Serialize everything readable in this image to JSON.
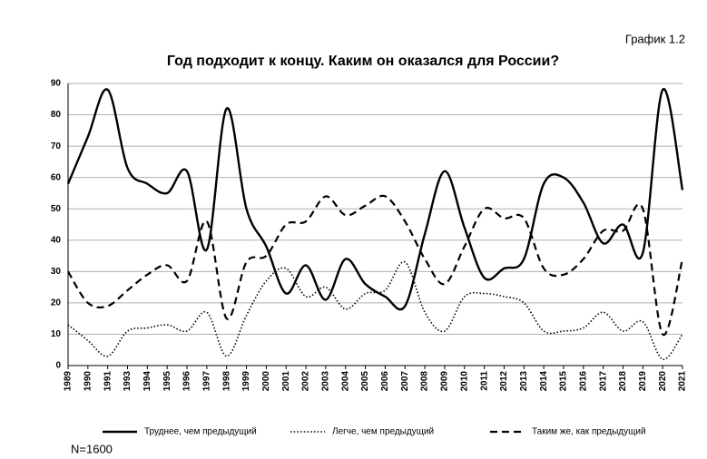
{
  "chart_data": {
    "type": "line",
    "title": "Год подходит к концу. Каким он оказался для России?",
    "label": "График 1.2",
    "note": "N=1600",
    "categories": [
      "1989",
      "1990",
      "1991",
      "1993",
      "1994",
      "1995",
      "1996",
      "1997",
      "1998",
      "1999",
      "2000",
      "2001",
      "2002",
      "2003",
      "2004",
      "2005",
      "2006",
      "2007",
      "2008",
      "2009",
      "2010",
      "2011",
      "2012",
      "2013",
      "2014",
      "2015",
      "2016",
      "2017",
      "2018",
      "2019",
      "2020",
      "2021"
    ],
    "series": [
      {
        "name": "Труднее, чем предыдущий",
        "color": "#000000",
        "style": "solid",
        "values": [
          58,
          73,
          88,
          63,
          58,
          55,
          62,
          37,
          82,
          50,
          38,
          23,
          32,
          21,
          34,
          26,
          22,
          19,
          42,
          62,
          44,
          28,
          31,
          34,
          58,
          60,
          52,
          39,
          45,
          36,
          88,
          56
        ]
      },
      {
        "name": "Легче, чем предыдущий",
        "color": "#000000",
        "style": "dotted",
        "values": [
          13,
          8,
          3,
          11,
          12,
          13,
          11,
          17,
          3,
          16,
          27,
          31,
          22,
          25,
          18,
          23,
          24,
          33,
          17,
          11,
          22,
          23,
          22,
          20,
          11,
          11,
          12,
          17,
          11,
          14,
          2,
          10
        ]
      },
      {
        "name": "Таким же, как предыдущий",
        "color": "#000000",
        "style": "dashed",
        "values": [
          30,
          20,
          19,
          24,
          29,
          32,
          27,
          46,
          15,
          33,
          35,
          45,
          46,
          54,
          48,
          51,
          54,
          46,
          34,
          26,
          38,
          50,
          47,
          47,
          31,
          29,
          34,
          43,
          43,
          50,
          10,
          34
        ]
      }
    ],
    "ylim": [
      0,
      90
    ],
    "yticks": [
      0,
      10,
      20,
      30,
      40,
      50,
      60,
      70,
      80,
      90
    ],
    "grid": true,
    "legend": "bottom"
  }
}
